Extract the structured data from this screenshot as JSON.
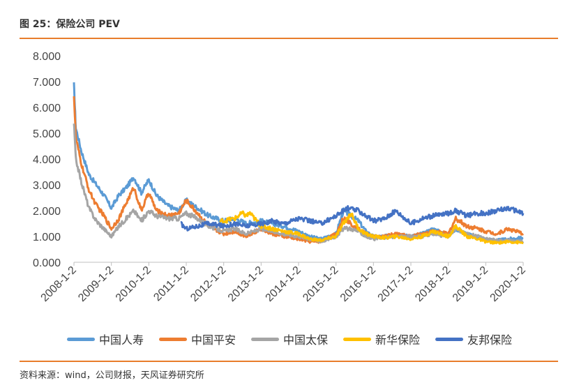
{
  "figure": {
    "title": "图 25：保险公司 PEV",
    "source": "资料来源：wind，公司财报，天风证券研究所"
  },
  "chart_data": {
    "type": "line",
    "title": "",
    "xlabel": "",
    "ylabel": "",
    "ylim": [
      0,
      8
    ],
    "xlim": [
      2008.0,
      2020.0
    ],
    "y_ticks": [
      "0.000",
      "1.000",
      "2.000",
      "3.000",
      "4.000",
      "5.000",
      "6.000",
      "7.000",
      "8.000"
    ],
    "x_ticks": [
      "2008-1-2",
      "2009-1-2",
      "2010-1-2",
      "2011-1-2",
      "2012-1-2",
      "2013-1-2",
      "2014-1-2",
      "2015-1-2",
      "2016-1-2",
      "2017-1-2",
      "2018-1-2",
      "2019-1-2",
      "2020-1-2"
    ],
    "series": [
      {
        "name": "中国人寿",
        "color": "#5b9bd5",
        "x": [
          2008.0,
          2008.05,
          2008.2,
          2008.4,
          2008.6,
          2008.8,
          2009.0,
          2009.2,
          2009.4,
          2009.6,
          2009.8,
          2010.0,
          2010.2,
          2010.5,
          2010.8,
          2011.0,
          2011.3,
          2011.6,
          2012.0,
          2012.3,
          2012.6,
          2013.0,
          2013.3,
          2013.6,
          2014.0,
          2014.3,
          2014.6,
          2015.0,
          2015.2,
          2015.4,
          2015.6,
          2015.8,
          2016.0,
          2016.3,
          2016.6,
          2017.0,
          2017.3,
          2017.6,
          2018.0,
          2018.2,
          2018.5,
          2018.8,
          2019.0,
          2019.3,
          2019.6,
          2020.0
        ],
        "values": [
          6.9,
          5.2,
          4.3,
          3.4,
          3.0,
          2.6,
          2.1,
          2.6,
          2.9,
          3.3,
          2.7,
          3.2,
          2.6,
          2.2,
          2.0,
          2.4,
          2.1,
          1.8,
          1.6,
          1.7,
          1.5,
          1.6,
          1.5,
          1.4,
          1.2,
          1.0,
          0.9,
          1.1,
          2.0,
          1.8,
          1.6,
          1.2,
          1.0,
          1.0,
          1.1,
          1.0,
          1.1,
          1.3,
          1.0,
          1.3,
          1.1,
          0.95,
          0.9,
          0.85,
          0.9,
          0.95
        ]
      },
      {
        "name": "中国平安",
        "color": "#ed7d31",
        "x": [
          2008.0,
          2008.05,
          2008.2,
          2008.4,
          2008.6,
          2008.8,
          2009.0,
          2009.2,
          2009.4,
          2009.6,
          2009.8,
          2010.0,
          2010.2,
          2010.5,
          2010.8,
          2011.0,
          2011.3,
          2011.6,
          2012.0,
          2012.3,
          2012.6,
          2013.0,
          2013.3,
          2013.6,
          2014.0,
          2014.3,
          2014.6,
          2015.0,
          2015.2,
          2015.4,
          2015.6,
          2015.8,
          2016.0,
          2016.3,
          2016.6,
          2017.0,
          2017.3,
          2017.6,
          2018.0,
          2018.2,
          2018.5,
          2018.8,
          2019.0,
          2019.3,
          2019.6,
          2020.0
        ],
        "values": [
          6.5,
          4.8,
          3.8,
          2.8,
          2.2,
          1.8,
          1.3,
          1.7,
          2.3,
          2.9,
          2.0,
          2.7,
          2.0,
          1.8,
          1.9,
          2.4,
          1.9,
          1.4,
          1.1,
          1.2,
          1.0,
          1.3,
          1.1,
          1.0,
          0.9,
          0.8,
          0.8,
          1.1,
          1.7,
          1.5,
          1.3,
          1.1,
          1.0,
          1.0,
          1.1,
          1.0,
          1.1,
          1.2,
          1.1,
          1.7,
          1.4,
          1.3,
          1.2,
          1.1,
          1.3,
          1.1
        ]
      },
      {
        "name": "中国太保",
        "color": "#a5a5a5",
        "x": [
          2008.0,
          2008.05,
          2008.2,
          2008.4,
          2008.6,
          2008.8,
          2009.0,
          2009.2,
          2009.4,
          2009.6,
          2009.8,
          2010.0,
          2010.2,
          2010.5,
          2010.8,
          2011.0,
          2011.3,
          2011.6,
          2012.0,
          2012.3,
          2012.6,
          2013.0,
          2013.3,
          2013.6,
          2014.0,
          2014.3,
          2014.6,
          2015.0,
          2015.2,
          2015.4,
          2015.6,
          2015.8,
          2016.0,
          2016.3,
          2016.6,
          2017.0,
          2017.3,
          2017.6,
          2018.0,
          2018.2,
          2018.5,
          2018.8,
          2019.0,
          2019.3,
          2019.6,
          2020.0
        ],
        "values": [
          5.4,
          4.0,
          3.1,
          2.1,
          1.6,
          1.3,
          1.0,
          1.4,
          1.7,
          2.0,
          1.6,
          2.0,
          1.8,
          1.7,
          1.7,
          1.9,
          1.7,
          1.4,
          1.2,
          1.3,
          1.1,
          1.3,
          1.2,
          1.1,
          1.0,
          0.9,
          0.8,
          1.0,
          1.3,
          1.3,
          1.2,
          1.0,
          0.9,
          0.95,
          1.0,
          1.0,
          1.0,
          1.1,
          1.0,
          1.3,
          1.1,
          1.0,
          0.9,
          0.85,
          0.85,
          0.8
        ]
      },
      {
        "name": "新华保险",
        "color": "#ffc000",
        "x": [
          2011.9,
          2012.0,
          2012.3,
          2012.5,
          2012.6,
          2012.7,
          2013.0,
          2013.3,
          2013.6,
          2014.0,
          2014.3,
          2014.6,
          2015.0,
          2015.2,
          2015.4,
          2015.6,
          2015.8,
          2016.0,
          2016.3,
          2016.6,
          2017.0,
          2017.3,
          2017.6,
          2018.0,
          2018.2,
          2018.5,
          2018.8,
          2019.0,
          2019.3,
          2019.6,
          2020.0
        ],
        "values": [
          1.6,
          1.6,
          1.7,
          1.9,
          1.8,
          1.9,
          1.4,
          1.3,
          1.2,
          1.1,
          0.9,
          0.85,
          1.0,
          1.5,
          1.9,
          1.3,
          1.1,
          1.0,
          0.95,
          1.0,
          0.9,
          1.0,
          1.2,
          1.0,
          1.4,
          1.0,
          0.9,
          0.8,
          0.75,
          0.8,
          0.75
        ]
      },
      {
        "name": "友邦保险",
        "color": "#4472c4",
        "x": [
          2010.85,
          2011.0,
          2011.3,
          2011.6,
          2012.0,
          2012.3,
          2012.6,
          2013.0,
          2013.3,
          2013.6,
          2014.0,
          2014.3,
          2014.6,
          2015.0,
          2015.3,
          2015.6,
          2015.8,
          2016.0,
          2016.3,
          2016.6,
          2017.0,
          2017.3,
          2017.6,
          2018.0,
          2018.2,
          2018.5,
          2018.8,
          2019.0,
          2019.3,
          2019.6,
          2019.8,
          2020.0
        ],
        "values": [
          1.5,
          1.3,
          1.4,
          1.5,
          1.4,
          1.5,
          1.4,
          1.5,
          1.6,
          1.5,
          1.7,
          1.6,
          1.5,
          1.8,
          2.1,
          2.0,
          1.8,
          1.6,
          1.7,
          2.0,
          1.5,
          1.7,
          1.8,
          1.9,
          2.0,
          1.8,
          1.9,
          1.9,
          2.0,
          2.1,
          2.0,
          1.9
        ]
      }
    ]
  }
}
